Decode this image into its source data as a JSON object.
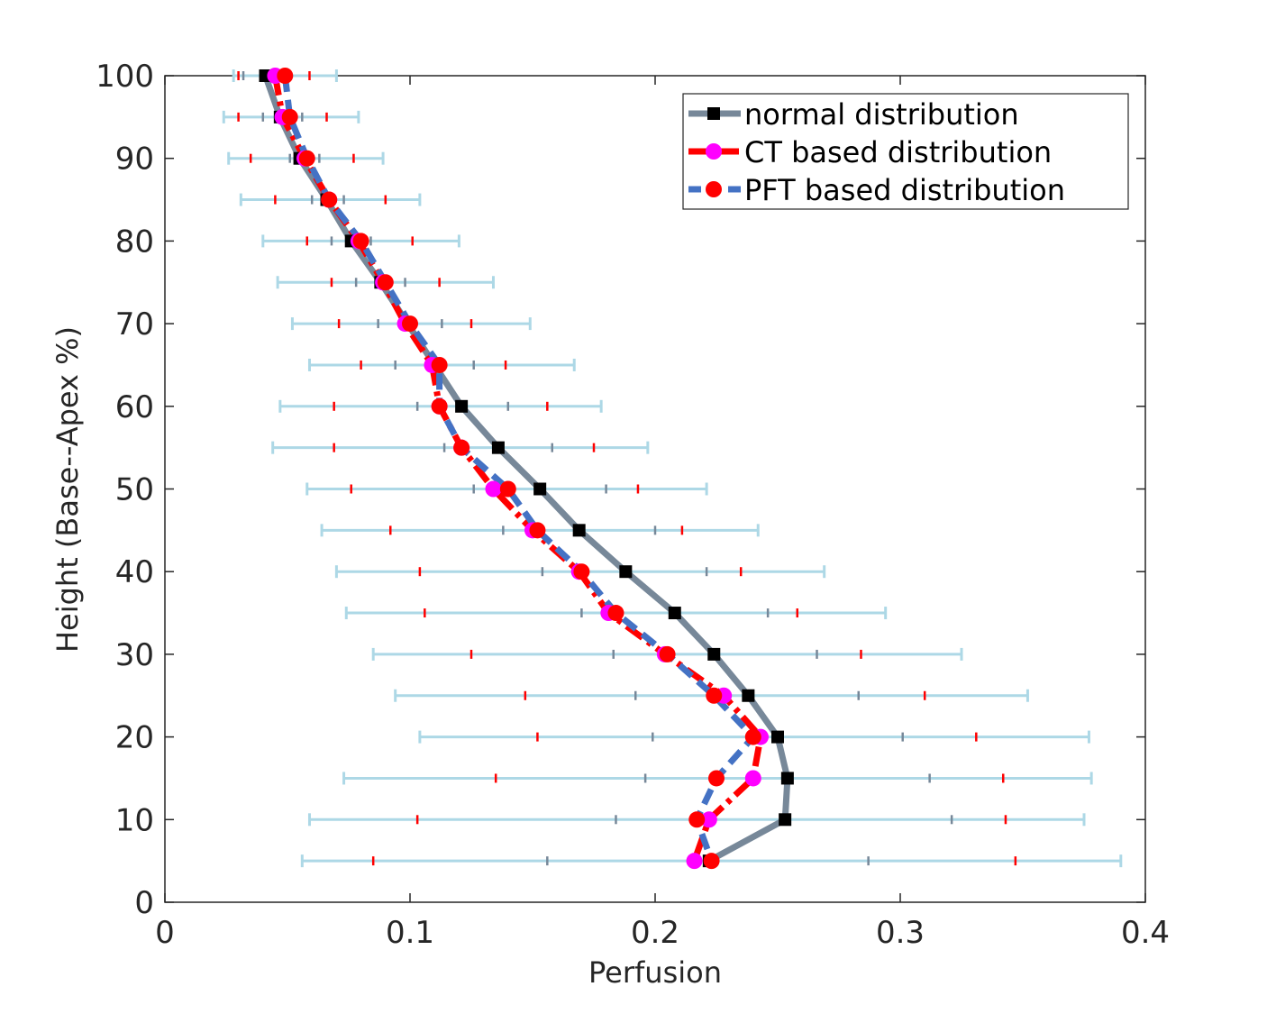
{
  "chart_data": {
    "type": "line",
    "xlabel": "Perfusion",
    "ylabel": "Height (Base--Apex %)",
    "xlim": [
      0,
      0.4
    ],
    "ylim": [
      0,
      100
    ],
    "x_ticks": [
      0,
      0.1,
      0.2,
      0.3,
      0.4
    ],
    "x_tick_labels": [
      "0",
      "0.1",
      "0.2",
      "0.3",
      "0.4"
    ],
    "y_ticks": [
      0,
      10,
      20,
      30,
      40,
      50,
      60,
      70,
      80,
      90,
      100
    ],
    "y_tick_labels": [
      "0",
      "10",
      "20",
      "30",
      "40",
      "50",
      "60",
      "70",
      "80",
      "90",
      "100"
    ],
    "legend_position": "top-right",
    "grid": false,
    "y": [
      100,
      95,
      90,
      85,
      80,
      75,
      70,
      65,
      60,
      55,
      50,
      45,
      40,
      35,
      30,
      25,
      20,
      15,
      10,
      5
    ],
    "series": [
      {
        "name": "normal distribution",
        "color": "#778899",
        "marker_color": "#000000",
        "line_style": "solid",
        "x": [
          0.041,
          0.047,
          0.055,
          0.066,
          0.076,
          0.088,
          0.099,
          0.11,
          0.121,
          0.136,
          0.153,
          0.169,
          0.188,
          0.208,
          0.224,
          0.238,
          0.25,
          0.254,
          0.253,
          0.222
        ]
      },
      {
        "name": "CT based distribution",
        "color": "#ff0000",
        "marker_color": "#ff00ff",
        "line_style": "dashdot",
        "x": [
          0.045,
          0.048,
          0.057,
          0.067,
          0.079,
          0.089,
          0.098,
          0.109,
          0.112,
          0.121,
          0.134,
          0.15,
          0.169,
          0.181,
          0.204,
          0.228,
          0.243,
          0.24,
          0.222,
          0.216
        ]
      },
      {
        "name": "PFT based distribution",
        "color": "#4472c4",
        "marker_color": "#ff0000",
        "line_style": "dashed",
        "x": [
          0.049,
          0.051,
          0.058,
          0.067,
          0.08,
          0.09,
          0.1,
          0.112,
          0.112,
          0.121,
          0.14,
          0.152,
          0.17,
          0.184,
          0.205,
          0.224,
          0.24,
          0.225,
          0.217,
          0.223
        ]
      }
    ],
    "error_bars": {
      "color": "#add8e6",
      "y": [
        100,
        95,
        90,
        85,
        80,
        75,
        70,
        65,
        60,
        55,
        50,
        45,
        40,
        35,
        30,
        25,
        20,
        15,
        10,
        5
      ],
      "lower": [
        0.028,
        0.024,
        0.026,
        0.031,
        0.04,
        0.046,
        0.052,
        0.059,
        0.047,
        0.044,
        0.058,
        0.064,
        0.07,
        0.074,
        0.085,
        0.094,
        0.104,
        0.073,
        0.059,
        0.056
      ],
      "upper": [
        0.07,
        0.079,
        0.089,
        0.104,
        0.12,
        0.134,
        0.149,
        0.167,
        0.178,
        0.197,
        0.221,
        0.242,
        0.269,
        0.294,
        0.325,
        0.352,
        0.377,
        0.378,
        0.375,
        0.39
      ],
      "inner_markers": {
        "grey": {
          "color": "#778899",
          "lower": [
            0.032,
            0.04,
            0.051,
            0.06,
            0.068,
            0.078,
            0.087,
            0.094,
            0.103,
            0.114,
            0.126,
            0.138,
            0.154,
            0.17,
            0.183,
            0.192,
            0.199,
            0.196,
            0.184,
            0.156
          ],
          "upper": [
            0.05,
            0.056,
            0.063,
            0.073,
            0.084,
            0.098,
            0.113,
            0.126,
            0.14,
            0.158,
            0.18,
            0.2,
            0.221,
            0.246,
            0.266,
            0.283,
            0.301,
            0.312,
            0.321,
            0.287
          ]
        },
        "red": {
          "color": "#ff0000",
          "lower": [
            0.03,
            0.03,
            0.035,
            0.045,
            0.058,
            0.068,
            0.071,
            0.08,
            0.069,
            0.069,
            0.076,
            0.092,
            0.104,
            0.106,
            0.125,
            0.147,
            0.152,
            0.135,
            0.103,
            0.085
          ],
          "upper": [
            0.059,
            0.066,
            0.077,
            0.09,
            0.101,
            0.112,
            0.125,
            0.139,
            0.156,
            0.175,
            0.193,
            0.211,
            0.235,
            0.258,
            0.284,
            0.31,
            0.331,
            0.342,
            0.343,
            0.347
          ]
        }
      }
    }
  }
}
